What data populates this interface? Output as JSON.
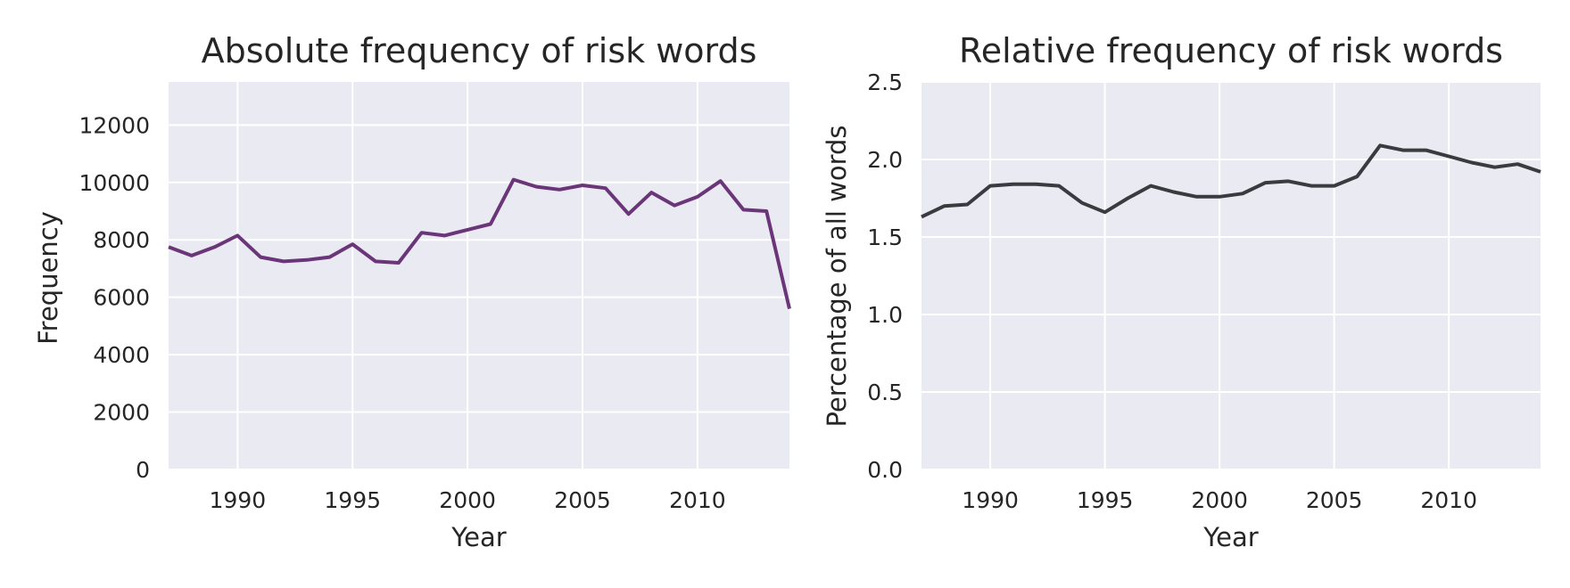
{
  "chart_data": [
    {
      "type": "line",
      "title": "Absolute frequency of risk words",
      "xlabel": "Year",
      "ylabel": "Frequency",
      "xlim": [
        1987,
        2014
      ],
      "ylim": [
        0,
        13500
      ],
      "xticks": [
        1990,
        1995,
        2000,
        2005,
        2010
      ],
      "yticks": [
        0,
        2000,
        4000,
        6000,
        8000,
        10000,
        12000
      ],
      "grid": true,
      "series": [
        {
          "color": "#6b3579",
          "x": [
            1987,
            1988,
            1989,
            1990,
            1991,
            1992,
            1993,
            1994,
            1995,
            1996,
            1997,
            1998,
            1999,
            2000,
            2001,
            2002,
            2003,
            2004,
            2005,
            2006,
            2007,
            2008,
            2009,
            2010,
            2011,
            2012,
            2013,
            2014
          ],
          "y": [
            7750,
            7450,
            7750,
            8150,
            7400,
            7250,
            7300,
            7400,
            7850,
            7250,
            7200,
            8250,
            8150,
            8350,
            8550,
            10100,
            9850,
            9750,
            9900,
            9800,
            8900,
            9650,
            9200,
            9500,
            10050,
            9050,
            9000,
            5600
          ]
        }
      ]
    },
    {
      "type": "line",
      "title": "Relative frequency of risk words",
      "xlabel": "Year",
      "ylabel": "Percentage of all words",
      "xlim": [
        1987,
        2014
      ],
      "ylim": [
        0,
        2.5
      ],
      "xticks": [
        1990,
        1995,
        2000,
        2005,
        2010
      ],
      "yticks": [
        "0.0",
        "0.5",
        "1.0",
        "1.5",
        "2.0",
        "2.5"
      ],
      "grid": true,
      "series": [
        {
          "color": "#3b3b3f",
          "x": [
            1987,
            1988,
            1989,
            1990,
            1991,
            1992,
            1993,
            1994,
            1995,
            1996,
            1997,
            1998,
            1999,
            2000,
            2001,
            2002,
            2003,
            2004,
            2005,
            2006,
            2007,
            2008,
            2009,
            2010,
            2011,
            2012,
            2013,
            2014
          ],
          "y": [
            1.63,
            1.7,
            1.71,
            1.83,
            1.84,
            1.84,
            1.83,
            1.72,
            1.66,
            1.75,
            1.83,
            1.79,
            1.76,
            1.76,
            1.78,
            1.85,
            1.86,
            1.83,
            1.83,
            1.89,
            2.09,
            2.06,
            2.06,
            2.02,
            1.98,
            1.95,
            1.97,
            1.92
          ]
        }
      ]
    }
  ]
}
